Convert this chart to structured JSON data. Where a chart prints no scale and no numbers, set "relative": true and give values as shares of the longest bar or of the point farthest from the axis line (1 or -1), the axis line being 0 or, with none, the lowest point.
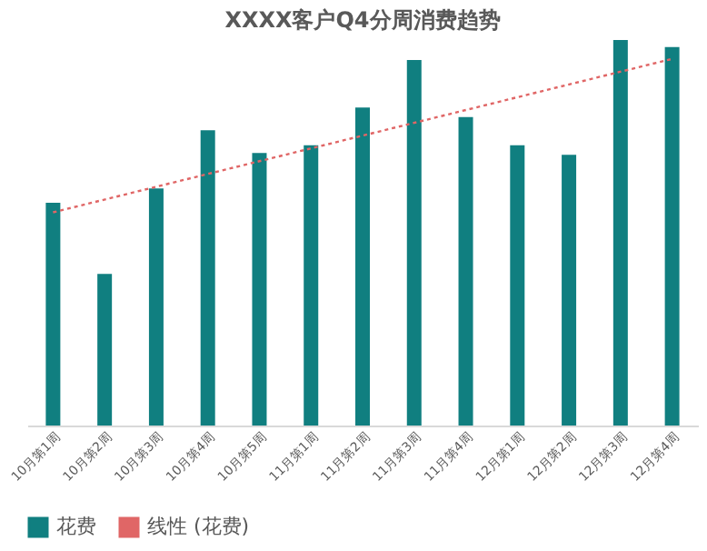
{
  "chart_data": {
    "type": "bar",
    "title": "XXXX客户Q4分周消费趋势",
    "relative": true,
    "categories": [
      "10月第1周",
      "10月第2周",
      "10月第3周",
      "10月第4周",
      "10月第5周",
      "11月第1周",
      "11月第2周",
      "11月第3周",
      "11月第4周",
      "12月第1周",
      "12月第2周",
      "12月第3周",
      "12月第4周"
    ],
    "series": [
      {
        "name": "花费",
        "color": "#107f80",
        "values": [
          0.578,
          0.393,
          0.615,
          0.766,
          0.707,
          0.727,
          0.825,
          0.948,
          0.8,
          0.727,
          0.702,
          1,
          0.982
        ]
      },
      {
        "name": "线性 (花费)",
        "type": "line",
        "line_style": "dotted",
        "color": "#e06666",
        "x": [
          "10月第1周",
          "12月第4周"
        ],
        "values": [
          0.553,
          0.951
        ]
      }
    ],
    "legend": "bottom",
    "grid": false
  }
}
